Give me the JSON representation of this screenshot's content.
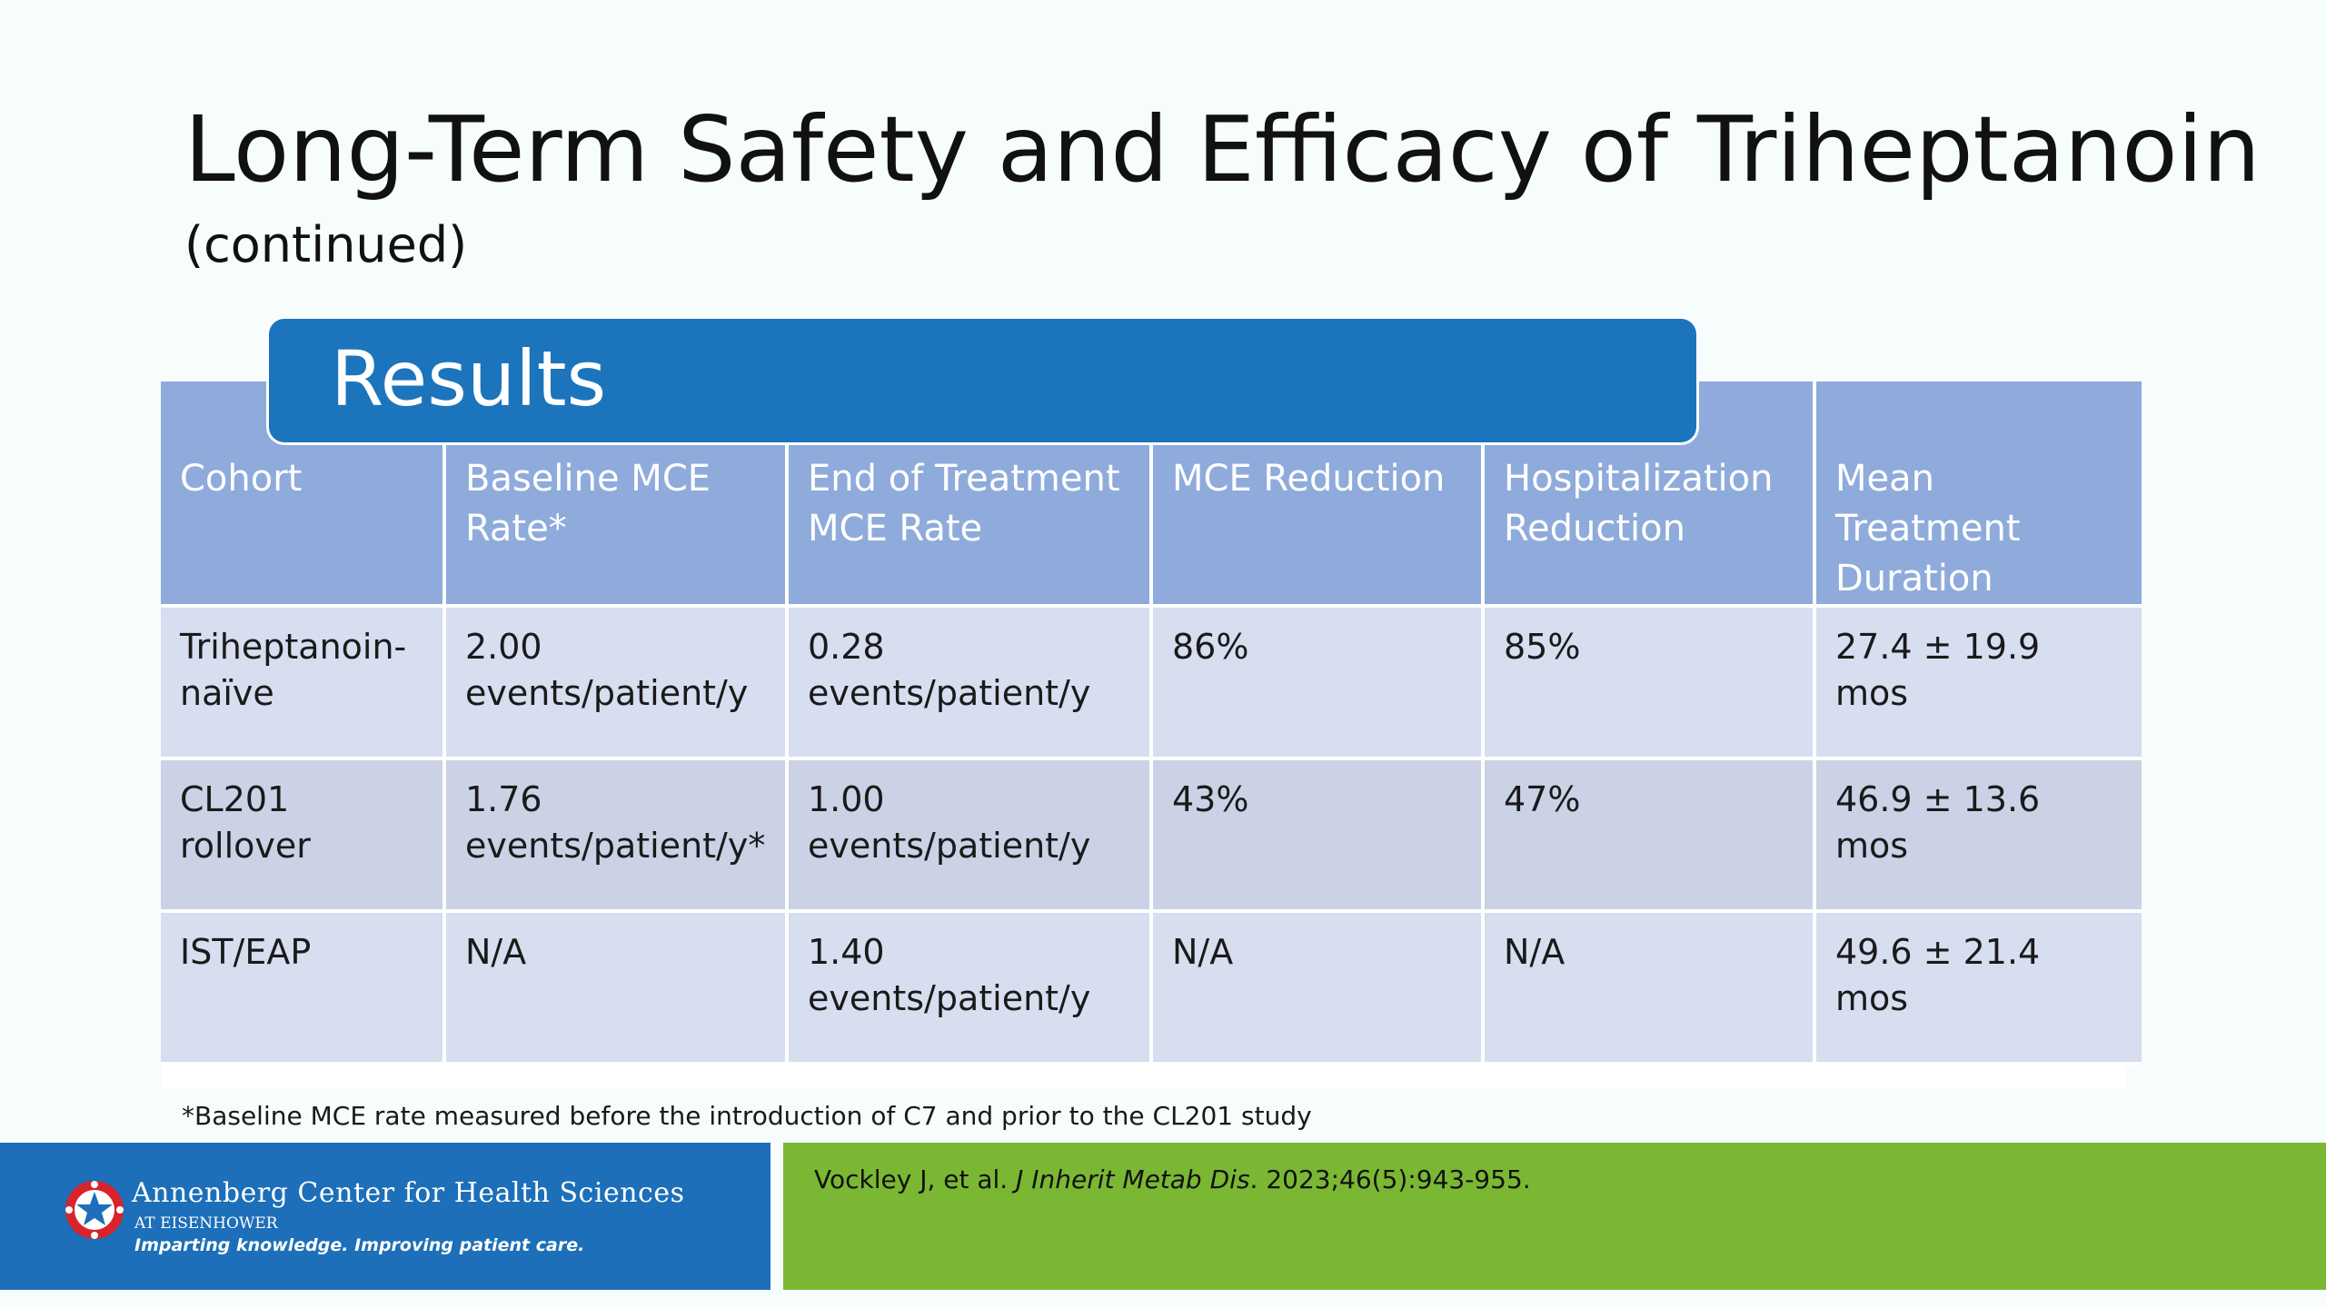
{
  "slide": {
    "title": "Long-Term Safety and Efficacy of Triheptanoin",
    "subtitle": "(continued)",
    "banner": "Results",
    "footnote": "*Baseline MCE rate measured before the introduction of C7 and prior to the CL201 study"
  },
  "table": {
    "headers": [
      "Cohort",
      "Baseline MCE Rate*",
      "End of Treatment MCE Rate",
      "MCE Reduction",
      "Hospitalization Reduction",
      "Mean Treatment Duration"
    ],
    "rows": [
      [
        "Triheptanoin-naïve",
        "2.00 events/patient/y",
        "0.28 events/patient/y",
        "86%",
        "85%",
        "27.4 ± 19.9 mos"
      ],
      [
        "CL201 rollover",
        "1.76 events/patient/y*",
        "1.00 events/patient/y",
        "43%",
        "47%",
        "46.9 ± 13.6 mos"
      ],
      [
        "IST/EAP",
        "N/A",
        "1.40 events/patient/y",
        "N/A",
        "N/A",
        "49.6 ± 21.4 mos"
      ]
    ]
  },
  "footer": {
    "logo_name": "Annenberg Center for Health Sciences",
    "logo_sub": "AT EISENHOWER",
    "logo_tagline": "Imparting knowledge. Improving patient care.",
    "citation_authors": "Vockley J, et al. ",
    "citation_journal": "J Inherit Metab Dis",
    "citation_rest": ". 2023;46(5):943-955."
  },
  "colors": {
    "banner": "#1c75bc",
    "header_cells": "#8eabdb",
    "row_light": "#d6def0",
    "row_dark": "#cbd2e6",
    "footer_blue": "#1c6fb8",
    "footer_green": "#7ab833"
  }
}
